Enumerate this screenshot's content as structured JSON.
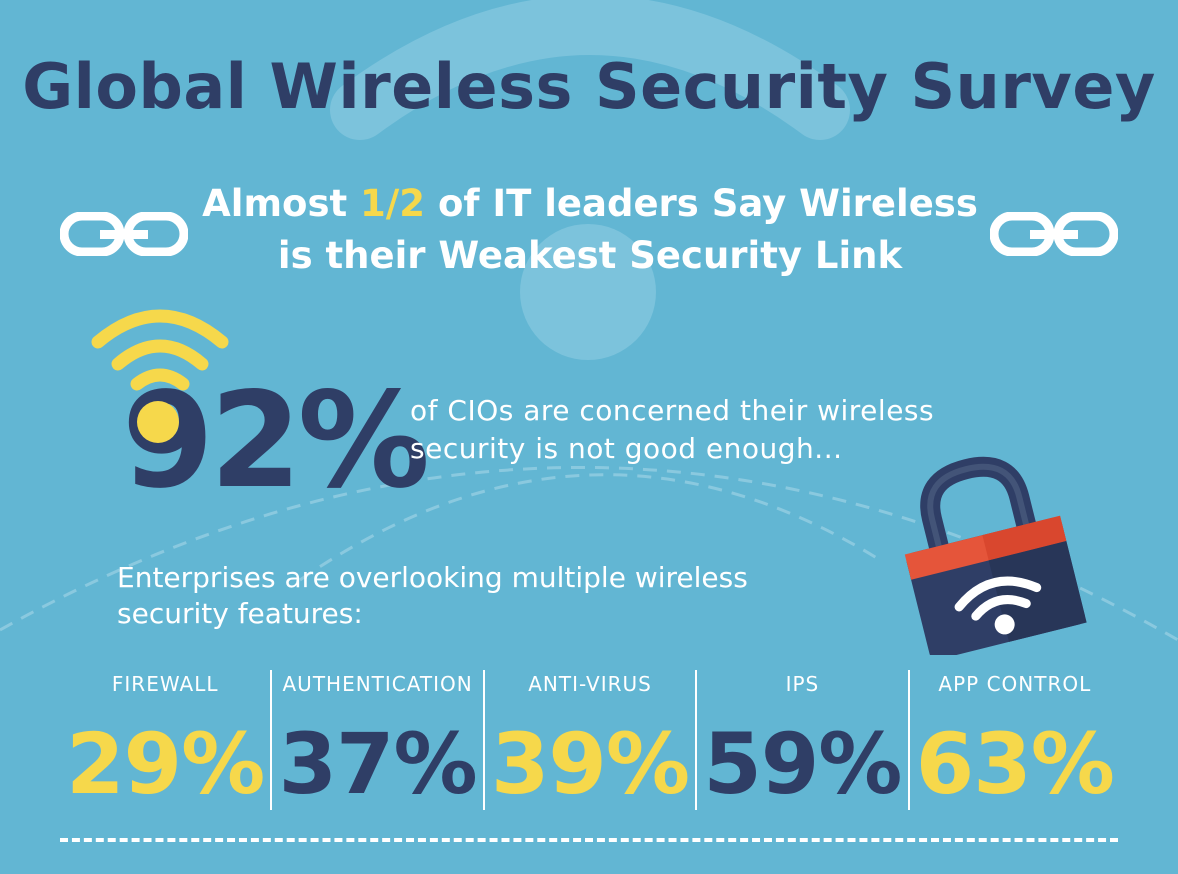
{
  "title": "Global Wireless Security Survey",
  "subtitle": {
    "prefix": "Almost ",
    "highlight": "1/2",
    "suffix": " of IT leaders Say Wireless",
    "line2": "is their Weakest Security Link"
  },
  "big_stat": {
    "value": "92%",
    "description_line1": "of CIOs are concerned their wireless",
    "description_line2": "security is not good enough..."
  },
  "enterprise_text": {
    "line1": "Enterprises are overlooking multiple wireless",
    "line2": "security features:"
  },
  "features": [
    {
      "label": "FIREWALL",
      "value": "29%",
      "color": "#f6d84b"
    },
    {
      "label": "AUTHENTICATION",
      "value": "37%",
      "color": "#2f3e66"
    },
    {
      "label": "ANTI-VIRUS",
      "value": "39%",
      "color": "#f6d84b"
    },
    {
      "label": "IPS",
      "value": "59%",
      "color": "#2f3e66"
    },
    {
      "label": "APP CONTROL",
      "value": "63%",
      "color": "#f6d84b"
    }
  ],
  "colors": {
    "background": "#62b6d3",
    "navy": "#2f3e66",
    "yellow": "#f6d84b",
    "lock_red": "#e5553a",
    "white": "#ffffff"
  },
  "icons": [
    "chain-link-icon",
    "wifi-icon",
    "padlock-wifi-icon"
  ]
}
